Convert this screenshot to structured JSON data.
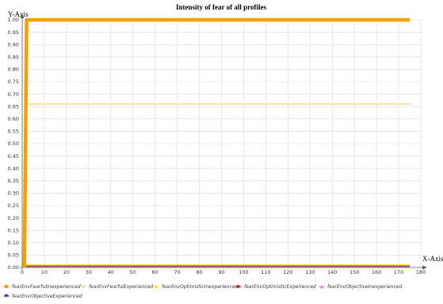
{
  "chart_data": {
    "type": "line",
    "title": "Intensity of fear of all profiles",
    "xlabel": "X-Axis",
    "ylabel": "Y-Axis",
    "xlim": [
      0,
      180
    ],
    "ylim": [
      0,
      1.0
    ],
    "x_ticks": [
      0,
      10,
      20,
      30,
      40,
      50,
      60,
      70,
      80,
      90,
      100,
      110,
      120,
      130,
      140,
      150,
      160,
      170,
      180
    ],
    "y_ticks": [
      0.0,
      0.05,
      0.1,
      0.15,
      0.2,
      0.25,
      0.3,
      0.35,
      0.4,
      0.45,
      0.5,
      0.55,
      0.6,
      0.65,
      0.7,
      0.75,
      0.8,
      0.85,
      0.9,
      0.95,
      1.0
    ],
    "y_tick_labels": [
      "0.00",
      "0.05",
      "0.10",
      "0.15",
      "0.20",
      "0.25",
      "0.30",
      "0.35",
      "0.40",
      "0.45",
      "0.50",
      "0.55",
      "0.60",
      "0.65",
      "0.70",
      "0.75",
      "0.80",
      "0.85",
      "0.90",
      "0.95",
      "1.00"
    ],
    "x_tick_labels": [
      "0",
      "10",
      "20",
      "30",
      "40",
      "50",
      "60",
      "70",
      "80",
      "90",
      "100",
      "110",
      "120",
      "130",
      "140",
      "150",
      "160",
      "170",
      "180"
    ],
    "grid": true,
    "legend_position": "bottom",
    "series": [
      {
        "name": "fearEnvFearfulInexperienced",
        "color": "#f5a000",
        "marker": "circle",
        "x": [
          1,
          2,
          175
        ],
        "y": [
          0,
          1.0,
          1.0
        ]
      },
      {
        "name": "fearEnvFearfulExperienced",
        "color": "#f7e3a8",
        "marker": "circle",
        "x": [
          1,
          2,
          175
        ],
        "y": [
          0,
          0.66,
          0.66
        ]
      },
      {
        "name": "fearEnvOptimisticInexperienced",
        "color": "#f0e000",
        "marker": "triangle",
        "x": [
          1,
          175
        ],
        "y": [
          0.01,
          0.01
        ]
      },
      {
        "name": "fearEnvOptimisticExperienced",
        "color": "#b01818",
        "marker": "diamond",
        "x": [
          1,
          175
        ],
        "y": [
          0.008,
          0.008
        ]
      },
      {
        "name": "fearEnvObjectiveInexperienced",
        "color": "#f080c8",
        "marker": "triangle",
        "x": [
          1,
          175
        ],
        "y": [
          0.006,
          0.006
        ]
      },
      {
        "name": "fearEnvObjectiveExperienced",
        "color": "#5a1a8a",
        "marker": "triangle-down",
        "x": [
          1,
          175
        ],
        "y": [
          0.004,
          0.004
        ]
      }
    ]
  }
}
